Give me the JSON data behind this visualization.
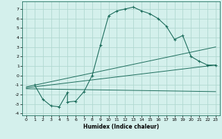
{
  "xlabel": "Humidex (Indice chaleur)",
  "bg_color": "#d4f0ec",
  "grid_color": "#b0d8d0",
  "line_color": "#1a6b5a",
  "xlim": [
    -0.5,
    23.5
  ],
  "ylim": [
    -4.2,
    7.8
  ],
  "xticks": [
    0,
    1,
    2,
    3,
    4,
    5,
    6,
    7,
    8,
    9,
    10,
    11,
    12,
    13,
    14,
    15,
    16,
    17,
    18,
    19,
    20,
    21,
    22,
    23
  ],
  "yticks": [
    -4,
    -3,
    -2,
    -1,
    0,
    1,
    2,
    3,
    4,
    5,
    6,
    7
  ],
  "humidex_x": [
    1,
    2,
    3,
    4,
    5,
    5,
    6,
    7,
    8,
    9,
    10,
    11,
    12,
    13,
    14,
    15,
    16,
    17,
    18,
    19,
    20,
    21,
    22,
    23
  ],
  "humidex_y": [
    -1.0,
    -2.5,
    -3.2,
    -3.3,
    -1.8,
    -2.8,
    -2.7,
    -1.7,
    0.0,
    3.2,
    6.3,
    6.8,
    7.0,
    7.2,
    6.8,
    6.5,
    6.0,
    5.2,
    3.8,
    4.2,
    2.0,
    1.5,
    1.1,
    1.1
  ],
  "trend1_x": [
    0,
    23
  ],
  "trend1_y": [
    -1.2,
    3.0
  ],
  "trend2_x": [
    0,
    23
  ],
  "trend2_y": [
    -1.3,
    1.1
  ],
  "trend3_x": [
    0,
    23
  ],
  "trend3_y": [
    -1.4,
    -1.7
  ]
}
